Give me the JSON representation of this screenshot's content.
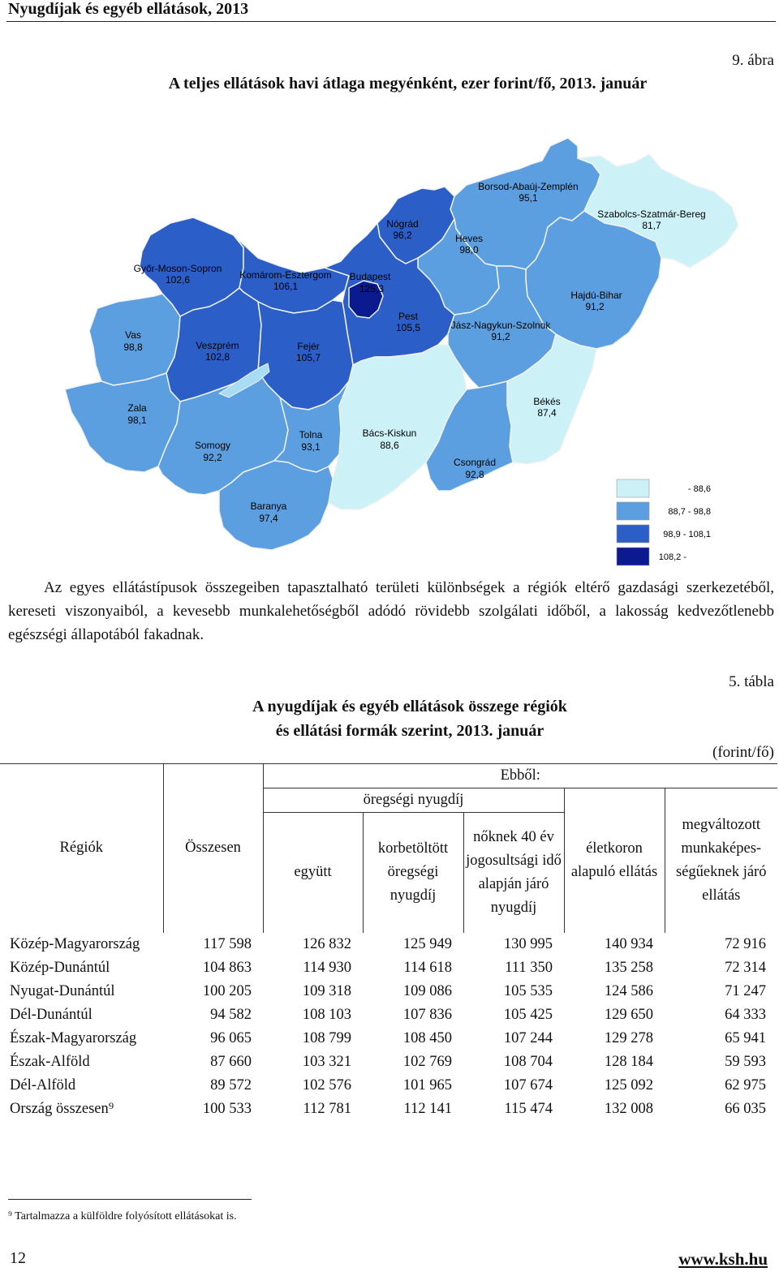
{
  "header": {
    "title": "Nyugdíjak és egyéb ellátások, 2013"
  },
  "figure": {
    "number": "9. ábra",
    "title": "A teljes ellátások havi átlaga megyénként, ezer forint/fő, 2013. január",
    "colors": {
      "low": "#ccf1f7",
      "mid": "#5c9fe0",
      "high": "#2c5ec8",
      "top": "#0b1a8e",
      "border": "#f2f2f2"
    },
    "regions": [
      {
        "name": "Borsod-Abaúj-Zemplén",
        "value": "95,1"
      },
      {
        "name": "Szabolcs-Szatmár-Bereg",
        "value": "81,7"
      },
      {
        "name": "Nógrád",
        "value": "96,2"
      },
      {
        "name": "Heves",
        "value": "98,0"
      },
      {
        "name": "Győr-Moson-Sopron",
        "value": "102,6"
      },
      {
        "name": "Komárom-Esztergom",
        "value": "106,1"
      },
      {
        "name": "Budapest",
        "value": "125,3"
      },
      {
        "name": "Hajdú-Bihar",
        "value": "91,2"
      },
      {
        "name": "Pest",
        "value": "105,5"
      },
      {
        "name": "Jász-Nagykun-Szolnok",
        "value": "91,2"
      },
      {
        "name": "Vas",
        "value": "98,8"
      },
      {
        "name": "Veszprém",
        "value": "102,8"
      },
      {
        "name": "Fejér",
        "value": "105,7"
      },
      {
        "name": "Békés",
        "value": "87,4"
      },
      {
        "name": "Zala",
        "value": "98,1"
      },
      {
        "name": "Bács-Kiskun",
        "value": "88,6"
      },
      {
        "name": "Somogy",
        "value": "92,2"
      },
      {
        "name": "Tolna",
        "value": "93,1"
      },
      {
        "name": "Csongrád",
        "value": "92,8"
      },
      {
        "name": "Baranya",
        "value": "97,4"
      }
    ],
    "legend": [
      "- 88,6",
      "88,7 - 98,8",
      "98,9 - 108,1",
      "108,2 -"
    ]
  },
  "paragraph": "Az egyes ellátástípusok összegeiben tapasztalható területi különbségek a régiók eltérő gazdasági szerkezetéből, kereseti viszonyaiból, a kevesebb munkalehetőségből adódó rövidebb szolgálati időből, a lakosság kedvezőtlenebb egészségi állapotából fakadnak.",
  "table": {
    "number": "5. tábla",
    "title_line1": "A nyugdíjak és egyéb ellátások összege régiók",
    "title_line2": "és ellátási formák szerint, 2013. január",
    "unit": "(forint/fő)",
    "headers": {
      "regiok": "Régiók",
      "osszesen": "Összesen",
      "ebbol": "Ebből:",
      "oregsegi": "öregségi nyugdíj",
      "egyutt": "együtt",
      "korbetoltott": "korbetöltött öregségi nyugdíj",
      "noknek": "nőknek 40 év jogosultsági idő alapján járó nyugdíj",
      "eletkoron": "életkoron alapuló ellátás",
      "megvaltozott": "megváltozott munkaképes-ségűeknek járó ellátás"
    },
    "rows": [
      {
        "name": "Közép-Magyarország",
        "values": [
          "117 598",
          "126 832",
          "125 949",
          "130 995",
          "140 934",
          "72 916"
        ]
      },
      {
        "name": "Közép-Dunántúl",
        "values": [
          "104 863",
          "114 930",
          "114 618",
          "111 350",
          "135 258",
          "72 314"
        ]
      },
      {
        "name": "Nyugat-Dunántúl",
        "values": [
          "100 205",
          "109 318",
          "109 086",
          "105 535",
          "124 586",
          "71 247"
        ]
      },
      {
        "name": "Dél-Dunántúl",
        "values": [
          "94 582",
          "108 103",
          "107 836",
          "105 425",
          "129 650",
          "64 333"
        ]
      },
      {
        "name": "Észak-Magyarország",
        "values": [
          "96 065",
          "108 799",
          "108 450",
          "107 244",
          "129 278",
          "65 941"
        ]
      },
      {
        "name": "Észak-Alföld",
        "values": [
          "87 660",
          "103 321",
          "102 769",
          "108 704",
          "128 184",
          "59 593"
        ]
      },
      {
        "name": "Dél-Alföld",
        "values": [
          "89 572",
          "102 576",
          "101 965",
          "107 674",
          "125 092",
          "62 975"
        ]
      }
    ],
    "total": {
      "name": "Ország összesen⁹",
      "values": [
        "100 533",
        "112 781",
        "112 141",
        "115 474",
        "132 008",
        "66 035"
      ]
    }
  },
  "footnote": "⁹ Tartalmazza a külföldre folyósított ellátásokat is.",
  "page_number": "12",
  "site": "www.ksh.hu"
}
